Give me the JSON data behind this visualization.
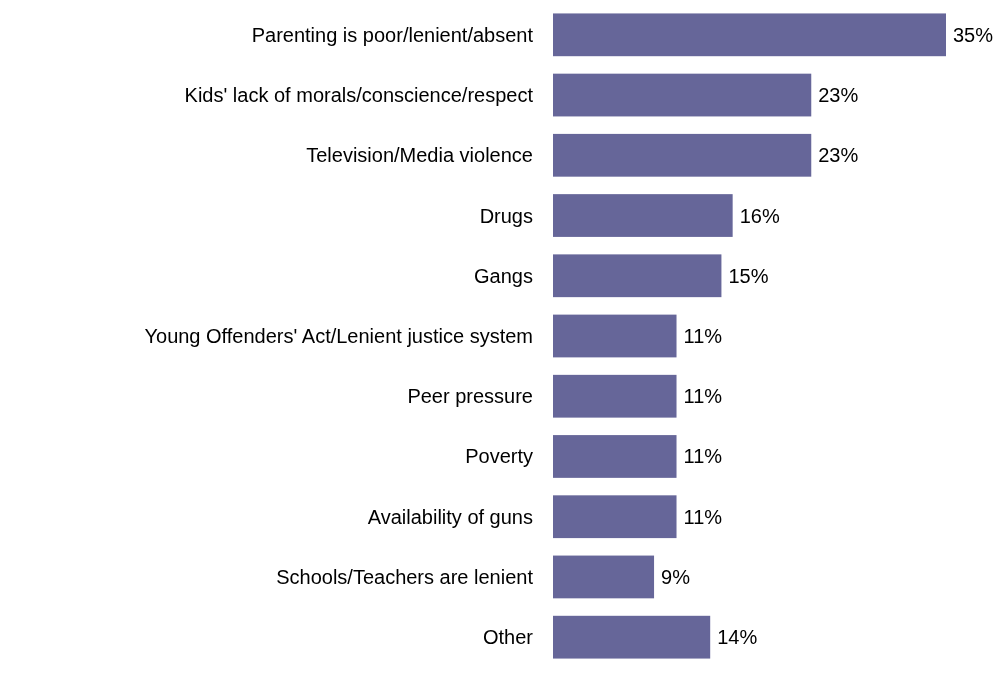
{
  "chart_data": {
    "type": "bar",
    "orientation": "horizontal",
    "categories": [
      "Parenting is poor/lenient/absent",
      "Kids' lack of morals/conscience/respect",
      "Television/Media violence",
      "Drugs",
      "Gangs",
      "Young Offenders' Act/Lenient justice system",
      "Peer pressure",
      "Poverty",
      "Availability of guns",
      "Schools/Teachers are lenient",
      "Other"
    ],
    "values": [
      35,
      23,
      23,
      16,
      15,
      11,
      11,
      11,
      11,
      9,
      14
    ],
    "value_labels": [
      "35%",
      "23%",
      "23%",
      "16%",
      "15%",
      "11%",
      "11%",
      "11%",
      "11%",
      "9%",
      "14%"
    ],
    "color": "#666699"
  }
}
